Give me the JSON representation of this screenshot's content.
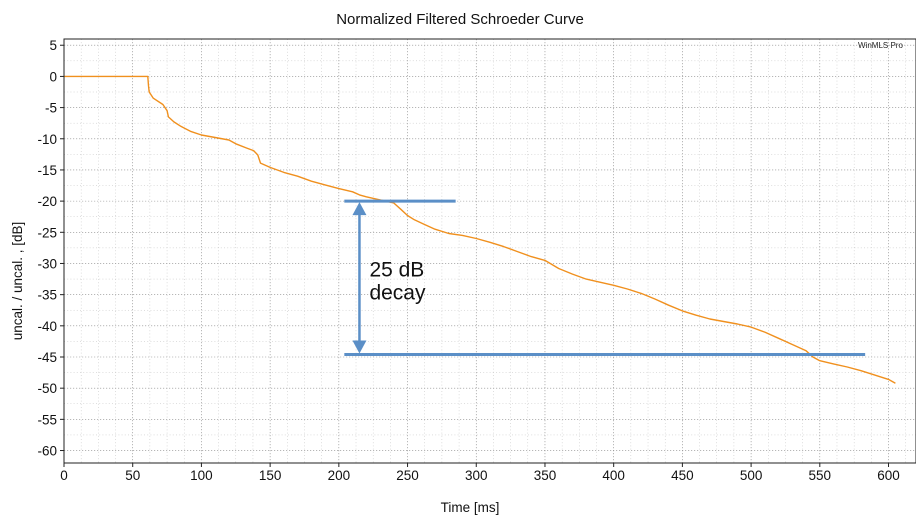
{
  "chart_data": {
    "type": "line",
    "title": "Normalized Filtered Schroeder Curve",
    "watermark": "WinMLS Pro",
    "xlabel": "Time [ms]",
    "ylabel": "uncal. / uncal. , [dB]",
    "xlim": [
      0,
      620
    ],
    "ylim": [
      -62,
      6
    ],
    "x_ticks": [
      0,
      50,
      100,
      150,
      200,
      250,
      300,
      350,
      400,
      450,
      500,
      550,
      600
    ],
    "y_ticks": [
      5,
      0,
      -5,
      -10,
      -15,
      -20,
      -25,
      -30,
      -35,
      -40,
      -45,
      -50,
      -55,
      -60
    ],
    "x_minor_step": 12.5,
    "y_minor_step": 2.5,
    "grid": true,
    "series": [
      {
        "color": "#f0901e",
        "points": [
          [
            0,
            0
          ],
          [
            61,
            0
          ],
          [
            61.5,
            -1.5
          ],
          [
            62,
            -2.5
          ],
          [
            65,
            -3.5
          ],
          [
            72,
            -4.5
          ],
          [
            75,
            -5.5
          ],
          [
            76,
            -6.5
          ],
          [
            80,
            -7.3
          ],
          [
            85,
            -8.0
          ],
          [
            92,
            -8.8
          ],
          [
            100,
            -9.4
          ],
          [
            110,
            -9.8
          ],
          [
            120,
            -10.2
          ],
          [
            125,
            -10.8
          ],
          [
            133,
            -11.5
          ],
          [
            138,
            -11.9
          ],
          [
            141,
            -12.6
          ],
          [
            143,
            -13.9
          ],
          [
            150,
            -14.6
          ],
          [
            160,
            -15.4
          ],
          [
            170,
            -16.0
          ],
          [
            180,
            -16.8
          ],
          [
            190,
            -17.4
          ],
          [
            200,
            -18.0
          ],
          [
            210,
            -18.5
          ],
          [
            215,
            -19.0
          ],
          [
            220,
            -19.3
          ],
          [
            230,
            -19.8
          ],
          [
            240,
            -20.3
          ],
          [
            245,
            -21.3
          ],
          [
            250,
            -22.3
          ],
          [
            255,
            -23.0
          ],
          [
            262,
            -23.7
          ],
          [
            270,
            -24.5
          ],
          [
            280,
            -25.2
          ],
          [
            290,
            -25.5
          ],
          [
            300,
            -26.0
          ],
          [
            310,
            -26.6
          ],
          [
            320,
            -27.3
          ],
          [
            330,
            -28.1
          ],
          [
            340,
            -28.9
          ],
          [
            350,
            -29.5
          ],
          [
            360,
            -30.8
          ],
          [
            370,
            -31.7
          ],
          [
            380,
            -32.5
          ],
          [
            390,
            -33.0
          ],
          [
            400,
            -33.5
          ],
          [
            410,
            -34.1
          ],
          [
            420,
            -34.8
          ],
          [
            430,
            -35.7
          ],
          [
            440,
            -36.7
          ],
          [
            450,
            -37.6
          ],
          [
            460,
            -38.3
          ],
          [
            470,
            -38.9
          ],
          [
            480,
            -39.3
          ],
          [
            490,
            -39.7
          ],
          [
            500,
            -40.2
          ],
          [
            510,
            -41.0
          ],
          [
            520,
            -42.0
          ],
          [
            530,
            -43.0
          ],
          [
            540,
            -44.0
          ],
          [
            545,
            -45.0
          ],
          [
            550,
            -45.6
          ],
          [
            560,
            -46.1
          ],
          [
            570,
            -46.6
          ],
          [
            580,
            -47.2
          ],
          [
            590,
            -47.9
          ],
          [
            600,
            -48.6
          ],
          [
            605,
            -49.2
          ]
        ]
      }
    ],
    "annotations": {
      "upper_level": {
        "y": -20,
        "x_start": 204,
        "x_end": 285,
        "color": "#5b8fc7"
      },
      "lower_level": {
        "y": -44.6,
        "x_start": 204,
        "x_end": 583,
        "color": "#5b8fc7"
      },
      "arrow": {
        "x": 215,
        "y_top": -20,
        "y_bottom": -44.6,
        "color": "#5b8fc7"
      },
      "label_line1": "25 dB",
      "label_line2": "decay"
    }
  }
}
